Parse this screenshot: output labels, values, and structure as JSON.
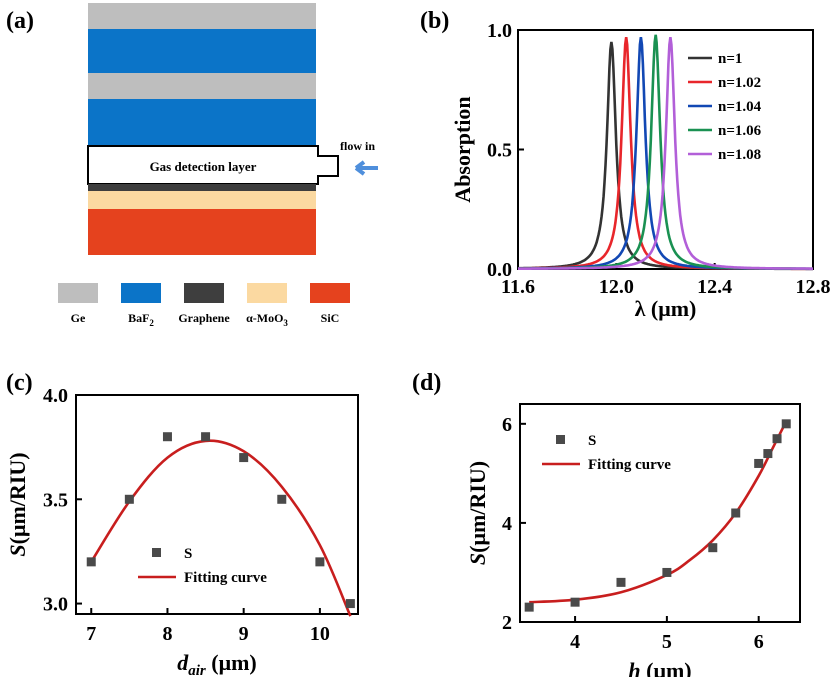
{
  "panel_a": {
    "label": "(a)",
    "layer_colors": {
      "Ge": "#bebebe",
      "BaF2": "#0b74c8",
      "Graphene": "#3e3e3e",
      "MoO3": "#fbd9a1",
      "SiC": "#e5421e"
    },
    "gas_layer_text": "Gas detection layer",
    "flow_text": "flow in",
    "arrow_color": "#4f8fdc",
    "legend": [
      {
        "name": "Ge",
        "color": "#bebebe"
      },
      {
        "name": "BaF",
        "sub": "2",
        "color": "#0b74c8"
      },
      {
        "name": "Graphene",
        "color": "#3e3e3e"
      },
      {
        "name": "α-MoO",
        "sub": "3",
        "color": "#fbd9a1"
      },
      {
        "name": "SiC",
        "color": "#e5421e"
      }
    ]
  },
  "chart_data": [
    {
      "panel": "(b)",
      "type": "line",
      "xlabel": "λ (μm)",
      "ylabel": "Absorption",
      "xlim": [
        11.6,
        12.8
      ],
      "ylim": [
        0.0,
        1.0
      ],
      "xticks": [
        "11.6",
        "12.0",
        "12.4",
        "12.8"
      ],
      "yticks": [
        "0.0",
        "0.5",
        "1.0"
      ],
      "legend_position": "top-right",
      "series": [
        {
          "name": "n=1",
          "color": "#333333",
          "peak_x": 11.98,
          "peak_y": 0.95
        },
        {
          "name": "n=1.02",
          "color": "#e8262b",
          "peak_x": 12.04,
          "peak_y": 0.97
        },
        {
          "name": "n=1.04",
          "color": "#1248b4",
          "peak_x": 12.1,
          "peak_y": 0.97
        },
        {
          "name": "n=1.06",
          "color": "#1a9152",
          "peak_x": 12.16,
          "peak_y": 0.98
        },
        {
          "name": "n=1.08",
          "color": "#b25fd8",
          "peak_x": 12.22,
          "peak_y": 0.97
        }
      ]
    },
    {
      "panel": "(c)",
      "type": "scatter",
      "xlabel_main": "d",
      "xlabel_sub": "air",
      "xlabel_unit": " (μm)",
      "ylabel": "S(μm/RIU)",
      "xlim": [
        6.8,
        10.5
      ],
      "ylim": [
        2.95,
        4.0
      ],
      "xticks": [
        "7",
        "8",
        "9",
        "10"
      ],
      "yticks": [
        "3.0",
        "3.5",
        "4.0"
      ],
      "legend_position": "bottom-left",
      "legend": {
        "points": "S",
        "fit": "Fitting curve"
      },
      "x": [
        7.0,
        7.5,
        8.0,
        8.5,
        9.0,
        9.5,
        10.0,
        10.4
      ],
      "y": [
        3.2,
        3.5,
        3.8,
        3.8,
        3.7,
        3.5,
        3.2,
        3.0
      ],
      "fit": {
        "x": [
          7.0,
          7.5,
          8.0,
          8.5,
          9.0,
          9.5,
          10.0,
          10.4
        ],
        "y": [
          3.2,
          3.49,
          3.7,
          3.78,
          3.73,
          3.56,
          3.28,
          2.94
        ]
      },
      "point_color": "#4a4a4a",
      "fit_color": "#c81e1e"
    },
    {
      "panel": "(d)",
      "type": "scatter",
      "xlabel_main": "h",
      "xlabel_unit": " (μm)",
      "ylabel": "S(μm/RIU)",
      "xlim": [
        3.4,
        6.45
      ],
      "ylim": [
        2.0,
        6.4
      ],
      "xticks": [
        "4",
        "5",
        "6"
      ],
      "yticks": [
        "2",
        "4",
        "6"
      ],
      "legend_position": "top-left",
      "legend": {
        "points": "S",
        "fit": "Fitting curve"
      },
      "x": [
        3.5,
        4.0,
        4.5,
        5.0,
        5.5,
        5.75,
        6.0,
        6.1,
        6.2,
        6.3
      ],
      "y": [
        2.3,
        2.4,
        2.8,
        3.0,
        3.5,
        4.2,
        5.2,
        5.4,
        5.7,
        6.0
      ],
      "fit": {
        "x": [
          3.5,
          4.0,
          4.5,
          5.0,
          5.25,
          5.5,
          5.75,
          6.0,
          6.15,
          6.3
        ],
        "y": [
          2.4,
          2.45,
          2.6,
          2.95,
          3.25,
          3.65,
          4.2,
          4.95,
          5.5,
          6.05
        ]
      },
      "point_color": "#4a4a4a",
      "fit_color": "#c81e1e"
    }
  ]
}
